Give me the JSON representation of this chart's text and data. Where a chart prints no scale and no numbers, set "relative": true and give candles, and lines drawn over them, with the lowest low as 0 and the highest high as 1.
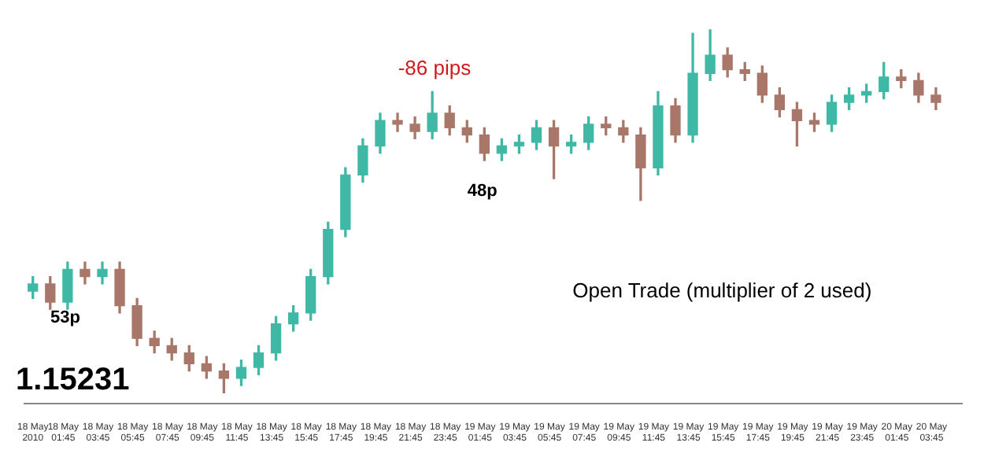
{
  "chart_data": {
    "type": "candlestick",
    "relative": true,
    "x": [
      "2010-05-18T00:00",
      "2010-05-18T01:00",
      "2010-05-18T02:00",
      "2010-05-18T03:00",
      "2010-05-18T04:00",
      "2010-05-18T05:00",
      "2010-05-18T06:00",
      "2010-05-18T07:00",
      "2010-05-18T08:00",
      "2010-05-18T09:00",
      "2010-05-18T10:00",
      "2010-05-18T11:00",
      "2010-05-18T12:00",
      "2010-05-18T13:00",
      "2010-05-18T14:00",
      "2010-05-18T15:00",
      "2010-05-18T16:00",
      "2010-05-18T17:00",
      "2010-05-18T18:00",
      "2010-05-18T19:00",
      "2010-05-18T20:00",
      "2010-05-18T21:00",
      "2010-05-18T22:00",
      "2010-05-18T23:00",
      "2010-05-19T00:00",
      "2010-05-19T01:00",
      "2010-05-19T02:00",
      "2010-05-19T03:00",
      "2010-05-19T04:00",
      "2010-05-19T05:00",
      "2010-05-19T06:00",
      "2010-05-19T07:00",
      "2010-05-19T08:00",
      "2010-05-19T09:00",
      "2010-05-19T10:00",
      "2010-05-19T11:00",
      "2010-05-19T12:00",
      "2010-05-19T13:00",
      "2010-05-19T14:00",
      "2010-05-19T15:00",
      "2010-05-19T16:00",
      "2010-05-19T17:00",
      "2010-05-19T18:00",
      "2010-05-19T19:00",
      "2010-05-19T20:00",
      "2010-05-19T21:00",
      "2010-05-19T22:00",
      "2010-05-19T23:00",
      "2010-05-20T00:00",
      "2010-05-20T01:00",
      "2010-05-20T02:00",
      "2010-05-20T03:00",
      "2010-05-20T04:00"
    ],
    "ohlc": [
      [
        0.28,
        0.32,
        0.26,
        0.3
      ],
      [
        0.3,
        0.32,
        0.23,
        0.25
      ],
      [
        0.25,
        0.36,
        0.23,
        0.34
      ],
      [
        0.34,
        0.36,
        0.3,
        0.32
      ],
      [
        0.32,
        0.36,
        0.3,
        0.34
      ],
      [
        0.34,
        0.36,
        0.22,
        0.24
      ],
      [
        0.24,
        0.26,
        0.13,
        0.15
      ],
      [
        0.15,
        0.17,
        0.11,
        0.13
      ],
      [
        0.13,
        0.15,
        0.09,
        0.11
      ],
      [
        0.11,
        0.13,
        0.06,
        0.08
      ],
      [
        0.08,
        0.1,
        0.04,
        0.06
      ],
      [
        0.06,
        0.08,
        0.0,
        0.04
      ],
      [
        0.04,
        0.09,
        0.02,
        0.07
      ],
      [
        0.07,
        0.13,
        0.05,
        0.11
      ],
      [
        0.11,
        0.21,
        0.09,
        0.19
      ],
      [
        0.19,
        0.24,
        0.17,
        0.22
      ],
      [
        0.22,
        0.34,
        0.2,
        0.32
      ],
      [
        0.32,
        0.47,
        0.3,
        0.45
      ],
      [
        0.45,
        0.62,
        0.43,
        0.6
      ],
      [
        0.6,
        0.7,
        0.58,
        0.68
      ],
      [
        0.68,
        0.77,
        0.66,
        0.75
      ],
      [
        0.75,
        0.77,
        0.72,
        0.74
      ],
      [
        0.74,
        0.76,
        0.7,
        0.72
      ],
      [
        0.72,
        0.83,
        0.7,
        0.77
      ],
      [
        0.77,
        0.79,
        0.71,
        0.73
      ],
      [
        0.73,
        0.75,
        0.69,
        0.71
      ],
      [
        0.71,
        0.73,
        0.64,
        0.66
      ],
      [
        0.66,
        0.7,
        0.64,
        0.68
      ],
      [
        0.68,
        0.71,
        0.66,
        0.69
      ],
      [
        0.69,
        0.75,
        0.67,
        0.73
      ],
      [
        0.73,
        0.75,
        0.59,
        0.68
      ],
      [
        0.68,
        0.71,
        0.66,
        0.69
      ],
      [
        0.69,
        0.76,
        0.67,
        0.74
      ],
      [
        0.74,
        0.76,
        0.71,
        0.73
      ],
      [
        0.73,
        0.75,
        0.69,
        0.71
      ],
      [
        0.71,
        0.73,
        0.53,
        0.62
      ],
      [
        0.62,
        0.83,
        0.6,
        0.79
      ],
      [
        0.79,
        0.81,
        0.69,
        0.71
      ],
      [
        0.71,
        0.99,
        0.69,
        0.88
      ],
      [
        0.88,
        1.0,
        0.86,
        0.93
      ],
      [
        0.93,
        0.95,
        0.87,
        0.89
      ],
      [
        0.89,
        0.91,
        0.86,
        0.88
      ],
      [
        0.88,
        0.9,
        0.8,
        0.82
      ],
      [
        0.82,
        0.84,
        0.76,
        0.78
      ],
      [
        0.78,
        0.8,
        0.68,
        0.75
      ],
      [
        0.75,
        0.77,
        0.72,
        0.74
      ],
      [
        0.74,
        0.82,
        0.72,
        0.8
      ],
      [
        0.8,
        0.84,
        0.78,
        0.82
      ],
      [
        0.82,
        0.85,
        0.8,
        0.83
      ],
      [
        0.83,
        0.91,
        0.81,
        0.87
      ],
      [
        0.87,
        0.89,
        0.84,
        0.86
      ],
      [
        0.86,
        0.88,
        0.8,
        0.82
      ],
      [
        0.82,
        0.84,
        0.78,
        0.8
      ]
    ],
    "colors": [
      "#3fb9a6",
      "#a8776a",
      "#3fb9a6",
      "#a8776a",
      "#3fb9a6",
      "#a8776a",
      "#a8776a",
      "#a8776a",
      "#a8776a",
      "#a8776a",
      "#a8776a",
      "#a8776a",
      "#3fb9a6",
      "#3fb9a6",
      "#3fb9a6",
      "#3fb9a6",
      "#3fb9a6",
      "#3fb9a6",
      "#3fb9a6",
      "#3fb9a6",
      "#3fb9a6",
      "#a8776a",
      "#a8776a",
      "#3fb9a6",
      "#a8776a",
      "#a8776a",
      "#a8776a",
      "#3fb9a6",
      "#3fb9a6",
      "#3fb9a6",
      "#a8776a",
      "#3fb9a6",
      "#3fb9a6",
      "#a8776a",
      "#a8776a",
      "#a8776a",
      "#3fb9a6",
      "#a8776a",
      "#3fb9a6",
      "#3fb9a6",
      "#a8776a",
      "#a8776a",
      "#a8776a",
      "#a8776a",
      "#a8776a",
      "#a8776a",
      "#3fb9a6",
      "#3fb9a6",
      "#3fb9a6",
      "#3fb9a6",
      "#a8776a",
      "#a8776a",
      "#a8776a"
    ],
    "xlim": [
      "2010-05-17T23:30",
      "2010-05-20T05:30"
    ],
    "xticks": [
      {
        "value": "2010-05-18T00:00",
        "label": "18 May 2010"
      },
      {
        "value": "2010-05-18T01:45",
        "label": "18 May 01:45"
      },
      {
        "value": "2010-05-18T03:45",
        "label": "18 May 03:45"
      },
      {
        "value": "2010-05-18T05:45",
        "label": "18 May 05:45"
      },
      {
        "value": "2010-05-18T07:45",
        "label": "18 May 07:45"
      },
      {
        "value": "2010-05-18T09:45",
        "label": "18 May 09:45"
      },
      {
        "value": "2010-05-18T11:45",
        "label": "18 May 11:45"
      },
      {
        "value": "2010-05-18T13:45",
        "label": "18 May 13:45"
      },
      {
        "value": "2010-05-18T15:45",
        "label": "18 May 15:45"
      },
      {
        "value": "2010-05-18T17:45",
        "label": "18 May 17:45"
      },
      {
        "value": "2010-05-18T19:45",
        "label": "18 May 19:45"
      },
      {
        "value": "2010-05-18T21:45",
        "label": "18 May 21:45"
      },
      {
        "value": "2010-05-18T23:45",
        "label": "18 May 23:45"
      },
      {
        "value": "2010-05-19T01:45",
        "label": "19 May 01:45"
      },
      {
        "value": "2010-05-19T03:45",
        "label": "19 May 03:45"
      },
      {
        "value": "2010-05-19T05:45",
        "label": "19 May 05:45"
      },
      {
        "value": "2010-05-19T07:45",
        "label": "19 May 07:45"
      },
      {
        "value": "2010-05-19T09:45",
        "label": "19 May 09:45"
      },
      {
        "value": "2010-05-19T11:45",
        "label": "19 May 11:45"
      },
      {
        "value": "2010-05-19T13:45",
        "label": "19 May 13:45"
      },
      {
        "value": "2010-05-19T15:45",
        "label": "19 May 15:45"
      },
      {
        "value": "2010-05-19T17:45",
        "label": "19 May 17:45"
      },
      {
        "value": "2010-05-19T19:45",
        "label": "19 May 19:45"
      },
      {
        "value": "2010-05-19T21:45",
        "label": "19 May 21:45"
      },
      {
        "value": "2010-05-19T23:45",
        "label": "19 May 23:45"
      },
      {
        "value": "2010-05-20T01:45",
        "label": "20 May 01:45"
      },
      {
        "value": "2010-05-20T03:45",
        "label": "20 May 03:45"
      }
    ],
    "annotations": [
      "-86 pips",
      "48p",
      "53p",
      "Open Trade (multiplier of 2 used)",
      "1.15231"
    ]
  }
}
